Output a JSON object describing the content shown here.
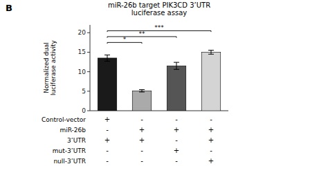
{
  "chart_data": {
    "type": "bar",
    "title": "miR-26b target PIK3CD 3’UTR\nluciferase assay",
    "ylabel": "Normalized dual\nluciferase activity",
    "categories": [
      null,
      null,
      null,
      null
    ],
    "values": [
      13.5,
      5.1,
      11.5,
      15.0
    ],
    "errors": [
      0.8,
      0.3,
      0.9,
      0.5
    ],
    "colors": [
      "#1a1a1a",
      "#aaaaaa",
      "#555555",
      "#d4d4d4"
    ],
    "ylim": [
      0,
      22
    ],
    "yticks": [
      0,
      5,
      10,
      15,
      20
    ],
    "tick_labels": "y",
    "significance": [
      {
        "x1": 0,
        "x2": 1,
        "y": 17.5,
        "label": "*"
      },
      {
        "x1": 0,
        "x2": 2,
        "y": 19.0,
        "label": "**"
      },
      {
        "x1": 0,
        "x2": 3,
        "y": 20.5,
        "label": "***"
      }
    ],
    "table": [
      [
        "Control-vector",
        "+",
        "-",
        "-",
        "-"
      ],
      [
        "miR-26b",
        "-",
        "+",
        "+",
        "+"
      ],
      [
        "3’UTR",
        "+",
        "+",
        "-",
        "+"
      ],
      [
        "mut-3’UTR",
        "-",
        "-",
        "+",
        "-"
      ],
      [
        "null-3’UTR",
        "-",
        "-",
        "-",
        "+"
      ]
    ],
    "panel_label": "B"
  }
}
